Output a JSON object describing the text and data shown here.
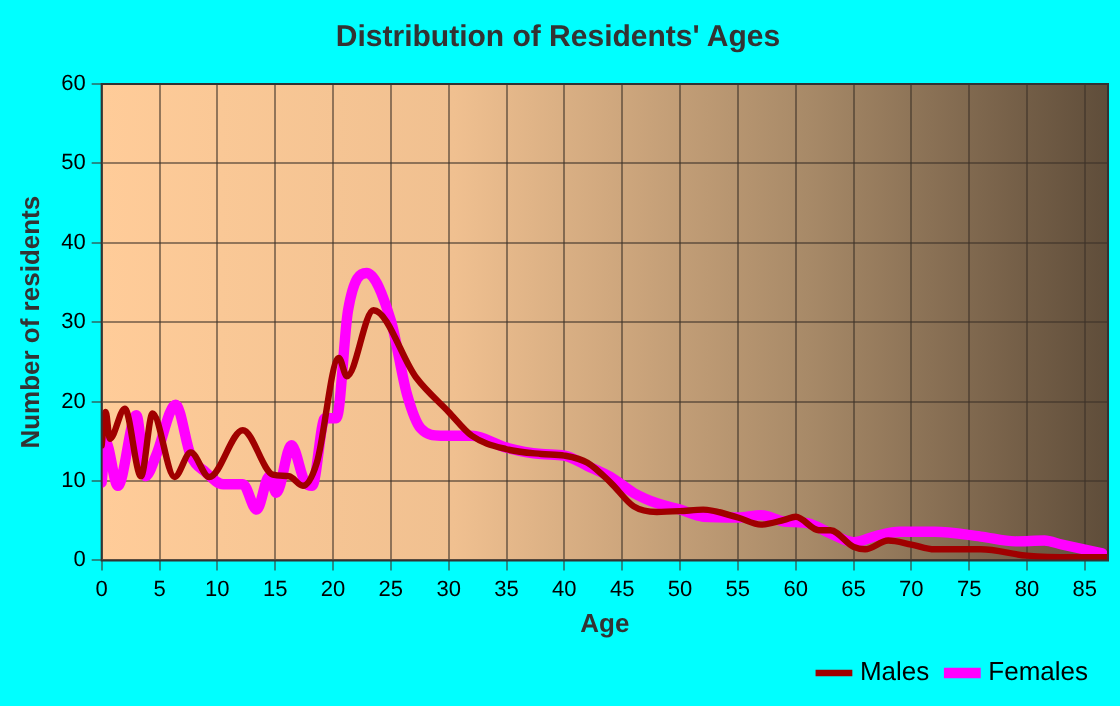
{
  "chart_data": {
    "type": "line",
    "title": "Distribution of Residents' Ages",
    "xlabel": "Age",
    "ylabel": "Number of residents",
    "xlim": [
      0,
      87
    ],
    "xticks": [
      0,
      5,
      10,
      15,
      20,
      25,
      30,
      35,
      40,
      45,
      50,
      55,
      60,
      65,
      70,
      75,
      80,
      85
    ],
    "ylim": [
      0,
      60
    ],
    "yticks": [
      0,
      10,
      20,
      30,
      40,
      50,
      60
    ],
    "grid": true,
    "legend": "bottom right",
    "marker": "none",
    "line_style": "solid",
    "series": [
      {
        "name": "Males",
        "color": "#a00000",
        "x": [
          0,
          0.35,
          0.7,
          2,
          3.4,
          4.4,
          6.3,
          7.7,
          9.3,
          12.2,
          14.8,
          16.2,
          17.4,
          18.6,
          20.5,
          21.2,
          23.5,
          27.2,
          30,
          32,
          35,
          38,
          40,
          42,
          44,
          46,
          48,
          50,
          52,
          55,
          57,
          59,
          60,
          62,
          63,
          65,
          66,
          68,
          70,
          72,
          76,
          80,
          84,
          87
        ],
        "values": [
          14.5,
          18.7,
          15.3,
          19.1,
          10.6,
          18.5,
          10.5,
          13.6,
          10.5,
          16.4,
          10.8,
          10.6,
          9.4,
          12.3,
          25.5,
          23.2,
          31.5,
          23,
          18.7,
          15.7,
          14,
          13.4,
          13.2,
          12.3,
          9.8,
          6.8,
          6.1,
          6.2,
          6.4,
          5.4,
          4.5,
          5.1,
          5.5,
          3.8,
          3.8,
          1.7,
          1.4,
          2.5,
          2,
          1.4,
          1.4,
          0.6,
          0.4,
          0.4
        ]
      },
      {
        "name": "Females",
        "color": "#ff00ff",
        "x": [
          0,
          0.35,
          1.4,
          3,
          3.8,
          4.7,
          6.4,
          7.7,
          9,
          10.5,
          12.2,
          13.4,
          14.5,
          15.1,
          16.4,
          17.6,
          18.2,
          19.3,
          20.3,
          21.3,
          22.9,
          25,
          26.4,
          27.6,
          29.3,
          32,
          35,
          38,
          40,
          42,
          44,
          46,
          48,
          50,
          52,
          55,
          57,
          59,
          61,
          63,
          65,
          67,
          69,
          72,
          76,
          79,
          81.5,
          83,
          86.5
        ],
        "values": [
          9.8,
          14.9,
          9.4,
          18.3,
          10.6,
          13.2,
          19.6,
          13.2,
          11.1,
          9.6,
          9.6,
          6.4,
          10.6,
          8.5,
          14.5,
          9.8,
          9.4,
          17.9,
          17.9,
          31.5,
          36.2,
          30.2,
          20.9,
          16.6,
          15.7,
          15.7,
          14.2,
          13.4,
          13.2,
          11.9,
          10.5,
          8.5,
          7.2,
          6.4,
          5.5,
          5.4,
          5.7,
          4.9,
          4.7,
          3.4,
          2.3,
          3.1,
          3.6,
          3.6,
          3,
          2.4,
          2.5,
          2,
          0.9
        ]
      }
    ]
  }
}
